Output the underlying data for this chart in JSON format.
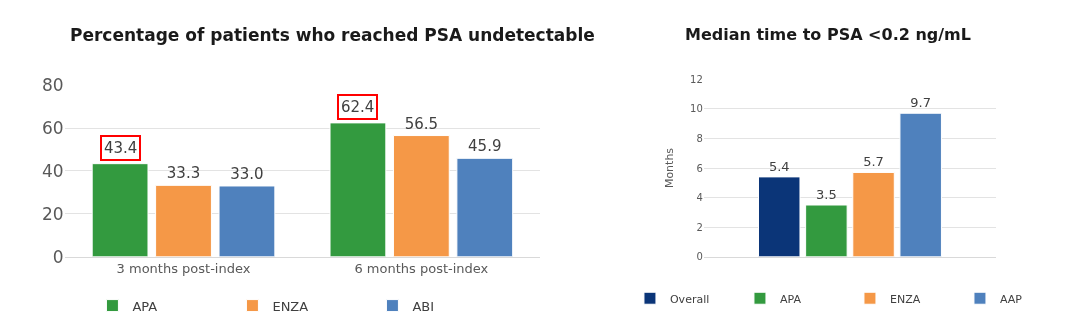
{
  "chart_data": [
    {
      "type": "bar",
      "title": "Percentage of patients who reached PSA undetectable",
      "categories": [
        "3 months post-index",
        "6 months post-index"
      ],
      "series": [
        {
          "name": "APA",
          "color": "#339a3f",
          "values": [
            43.4,
            62.4
          ],
          "value_labels": [
            null,
            null
          ]
        },
        {
          "name": "ENZA",
          "color": "#f59847",
          "values": [
            33.3,
            56.5
          ],
          "value_labels": [
            "33.3",
            "56.5"
          ]
        },
        {
          "name": "ABI",
          "color": "#4f81bd",
          "values": [
            33.0,
            45.9
          ],
          "value_labels": [
            "33.0",
            "45.9"
          ]
        }
      ],
      "annotations": [
        "43.4",
        "62.4"
      ],
      "ylim": [
        0,
        80
      ],
      "yticks": [
        0,
        20,
        40,
        60,
        80
      ],
      "grid": "y",
      "legend": "bottom"
    },
    {
      "type": "bar",
      "title": "Median time to PSA <0.2 ng/mL",
      "ylabel": "Months",
      "categories": [
        null
      ],
      "series": [
        {
          "name": "Overall",
          "color": "#0b3578",
          "values": [
            5.4
          ]
        },
        {
          "name": "APA",
          "color": "#339a3f",
          "values": [
            3.5
          ]
        },
        {
          "name": "ENZA",
          "color": "#f59847",
          "values": [
            5.7
          ]
        },
        {
          "name": "AAP",
          "color": "#4f81bd",
          "values": [
            9.7
          ]
        }
      ],
      "data_labels": true,
      "ylim": [
        0,
        12
      ],
      "yticks": [
        0,
        2,
        4,
        6,
        8,
        10,
        12
      ],
      "grid": "y",
      "legend": "bottom"
    }
  ]
}
